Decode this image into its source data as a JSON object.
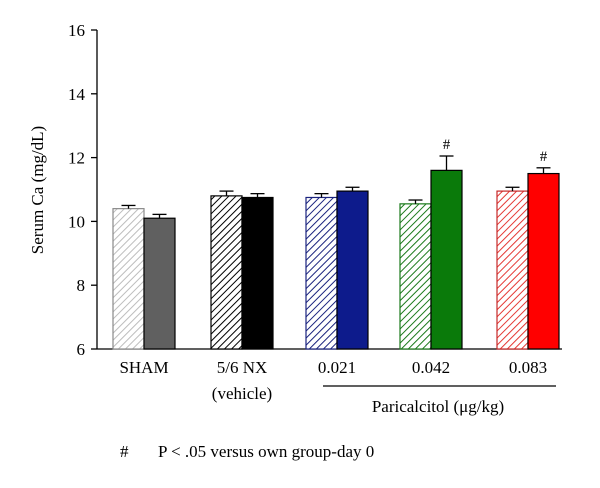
{
  "chart_data": {
    "type": "bar",
    "ylabel": "Serum Ca (mg/dL)",
    "ylim": [
      6,
      16
    ],
    "yticks": [
      6,
      8,
      10,
      12,
      14,
      16
    ],
    "categories": [
      "SHAM",
      "5/6 NX\n(vehicle)",
      "0.021",
      "0.042",
      "0.083"
    ],
    "group_label": "Paricalcitol (μg/kg)",
    "series": [
      {
        "values": [
          10.4,
          10.8,
          10.75,
          10.55,
          10.95
        ],
        "errors": [
          0.1,
          0.15,
          0.12,
          0.12,
          0.12
        ],
        "colors": [
          "#bdbdbd",
          "#000000",
          "#1a237e",
          "#1b7a1b",
          "#e53935"
        ],
        "pattern": "hatched"
      },
      {
        "values": [
          10.1,
          10.75,
          10.95,
          11.6,
          11.5
        ],
        "errors": [
          0.12,
          0.12,
          0.12,
          0.45,
          0.18
        ],
        "colors": [
          "#606060",
          "#000000",
          "#0d1b8c",
          "#0a7a0a",
          "#ff0000"
        ],
        "pattern": "solid"
      }
    ],
    "significance": [
      {
        "series": 1,
        "index": 3,
        "symbol": "#"
      },
      {
        "series": 1,
        "index": 4,
        "symbol": "#"
      }
    ]
  },
  "footnote": {
    "symbol": "#",
    "text": "P < .05 versus own group-day 0"
  }
}
